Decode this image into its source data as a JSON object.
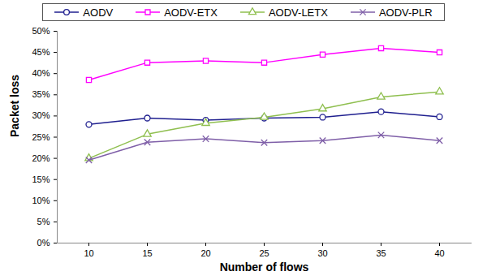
{
  "chart_data": {
    "type": "line",
    "x_label": "Number of flows",
    "y_label": "Packet loss",
    "categories": [
      "10",
      "15",
      "20",
      "25",
      "30",
      "35",
      "40"
    ],
    "ylim": [
      0,
      50
    ],
    "yticks": [
      {
        "value": 0,
        "label": "0%"
      },
      {
        "value": 5,
        "label": "5%"
      },
      {
        "value": 10,
        "label": "10%"
      },
      {
        "value": 15,
        "label": "15%"
      },
      {
        "value": 20,
        "label": "20%"
      },
      {
        "value": 25,
        "label": "25%"
      },
      {
        "value": 30,
        "label": "30%"
      },
      {
        "value": 35,
        "label": "35%"
      },
      {
        "value": 40,
        "label": "40%"
      },
      {
        "value": 45,
        "label": "45%"
      },
      {
        "value": 50,
        "label": "50%"
      }
    ],
    "grid": false,
    "legend": "top",
    "series": [
      {
        "name": "AODV",
        "color": "#1f1f8f",
        "marker": "circle",
        "values": [
          28.0,
          29.5,
          29.0,
          29.5,
          29.7,
          31.0,
          29.8
        ]
      },
      {
        "name": "AODV-ETX",
        "color": "#ff00ff",
        "marker": "square",
        "values": [
          38.5,
          42.6,
          43.0,
          42.6,
          44.5,
          46.0,
          45.0
        ]
      },
      {
        "name": "AODV-LETX",
        "color": "#8fbf4f",
        "marker": "triangle",
        "values": [
          20.0,
          25.7,
          28.3,
          29.7,
          31.7,
          34.5,
          35.7
        ]
      },
      {
        "name": "AODV-PLR",
        "color": "#7f5fa8",
        "marker": "cross",
        "values": [
          19.6,
          23.8,
          24.6,
          23.7,
          24.2,
          25.5,
          24.2
        ]
      }
    ]
  }
}
